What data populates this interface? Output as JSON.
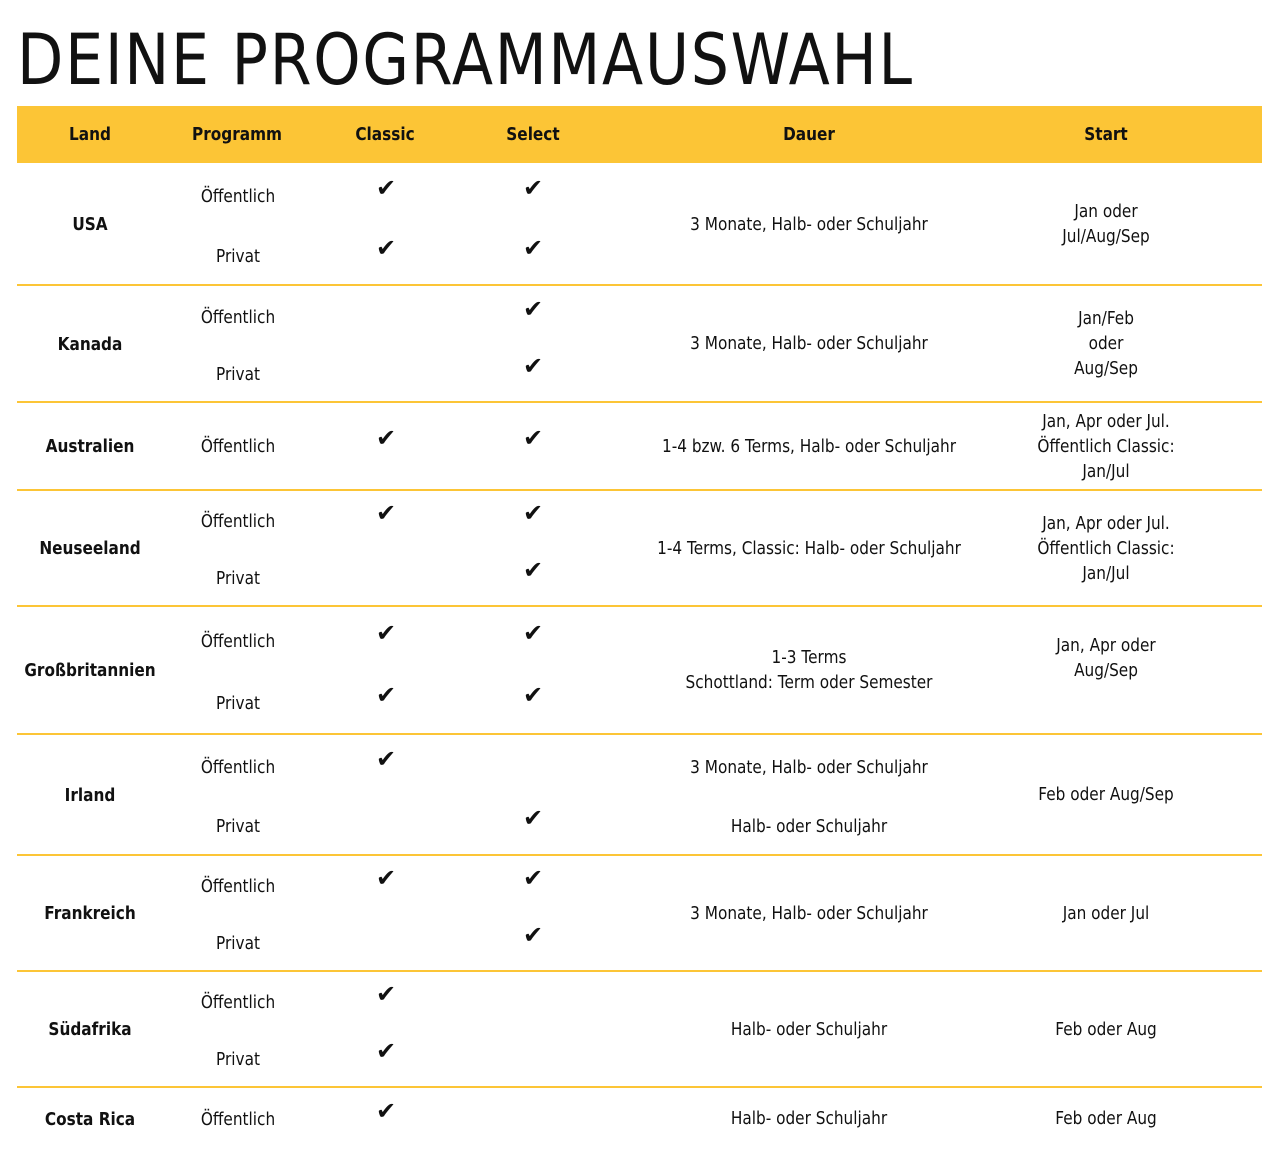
{
  "title": "DEINE PROGRAMMAUSWAHL",
  "colors": {
    "accent": "#fcc536",
    "text": "#111111",
    "background": "#ffffff"
  },
  "table": {
    "headers": [
      "Land",
      "Programm",
      "Classic",
      "Select",
      "Dauer",
      "Start"
    ],
    "check_icon": "✔",
    "rows": [
      {
        "land": "USA",
        "programs": [
          {
            "name": "Öffentlich",
            "classic": true,
            "select": true
          },
          {
            "name": "Privat",
            "classic": true,
            "select": true
          }
        ],
        "dauer": [
          "3 Monate, Halb- oder Schuljahr"
        ],
        "start": [
          "Jan oder",
          "Jul/Aug/Sep"
        ]
      },
      {
        "land": "Kanada",
        "programs": [
          {
            "name": "Öffentlich",
            "classic": false,
            "select": true
          },
          {
            "name": "Privat",
            "classic": false,
            "select": true
          }
        ],
        "dauer": [
          "3 Monate, Halb- oder Schuljahr"
        ],
        "start": [
          "Jan/Feb",
          "oder",
          "Aug/Sep"
        ]
      },
      {
        "land": "Australien",
        "programs": [
          {
            "name": "Öffentlich",
            "classic": true,
            "select": true
          }
        ],
        "dauer": [
          "1-4 bzw. 6 Terms, Halb- oder Schuljahr"
        ],
        "start": [
          "Jan, Apr oder Jul.",
          "Öffentlich Classic:",
          "Jan/Jul"
        ]
      },
      {
        "land": "Neuseeland",
        "programs": [
          {
            "name": "Öffentlich",
            "classic": true,
            "select": true
          },
          {
            "name": "Privat",
            "classic": false,
            "select": true
          }
        ],
        "dauer": [
          "1-4 Terms, Classic: Halb- oder Schuljahr"
        ],
        "start": [
          "Jan, Apr oder Jul.",
          "Öffentlich Classic:",
          "Jan/Jul"
        ]
      },
      {
        "land": "Großbritannien",
        "programs": [
          {
            "name": "Öffentlich",
            "classic": true,
            "select": true
          },
          {
            "name": "Privat",
            "classic": true,
            "select": true
          }
        ],
        "dauer": [
          "1-3 Terms",
          "Schottland: Term oder Semester"
        ],
        "start": [
          "Jan, Apr oder",
          "Aug/Sep"
        ]
      },
      {
        "land": "Irland",
        "programs": [
          {
            "name": "Öffentlich",
            "classic": true,
            "select": false,
            "dauer": "3 Monate, Halb- oder Schuljahr"
          },
          {
            "name": "Privat",
            "classic": false,
            "select": true,
            "dauer": "Halb- oder Schuljahr"
          }
        ],
        "start": [
          "Feb oder Aug/Sep"
        ]
      },
      {
        "land": "Frankreich",
        "programs": [
          {
            "name": "Öffentlich",
            "classic": true,
            "select": true
          },
          {
            "name": "Privat",
            "classic": false,
            "select": true
          }
        ],
        "dauer": [
          "3 Monate, Halb- oder Schuljahr"
        ],
        "start": [
          "Jan oder Jul"
        ]
      },
      {
        "land": "Südafrika",
        "programs": [
          {
            "name": "Öffentlich",
            "classic": true,
            "select": false
          },
          {
            "name": "Privat",
            "classic": true,
            "select": false
          }
        ],
        "dauer": [
          "Halb- oder Schuljahr"
        ],
        "start": [
          "Feb oder Aug"
        ]
      },
      {
        "land": "Costa Rica",
        "programs": [
          {
            "name": "Öffentlich",
            "classic": true,
            "select": false
          }
        ],
        "dauer": [
          "Halb- oder Schuljahr"
        ],
        "start": [
          "Feb oder Aug"
        ]
      }
    ]
  }
}
